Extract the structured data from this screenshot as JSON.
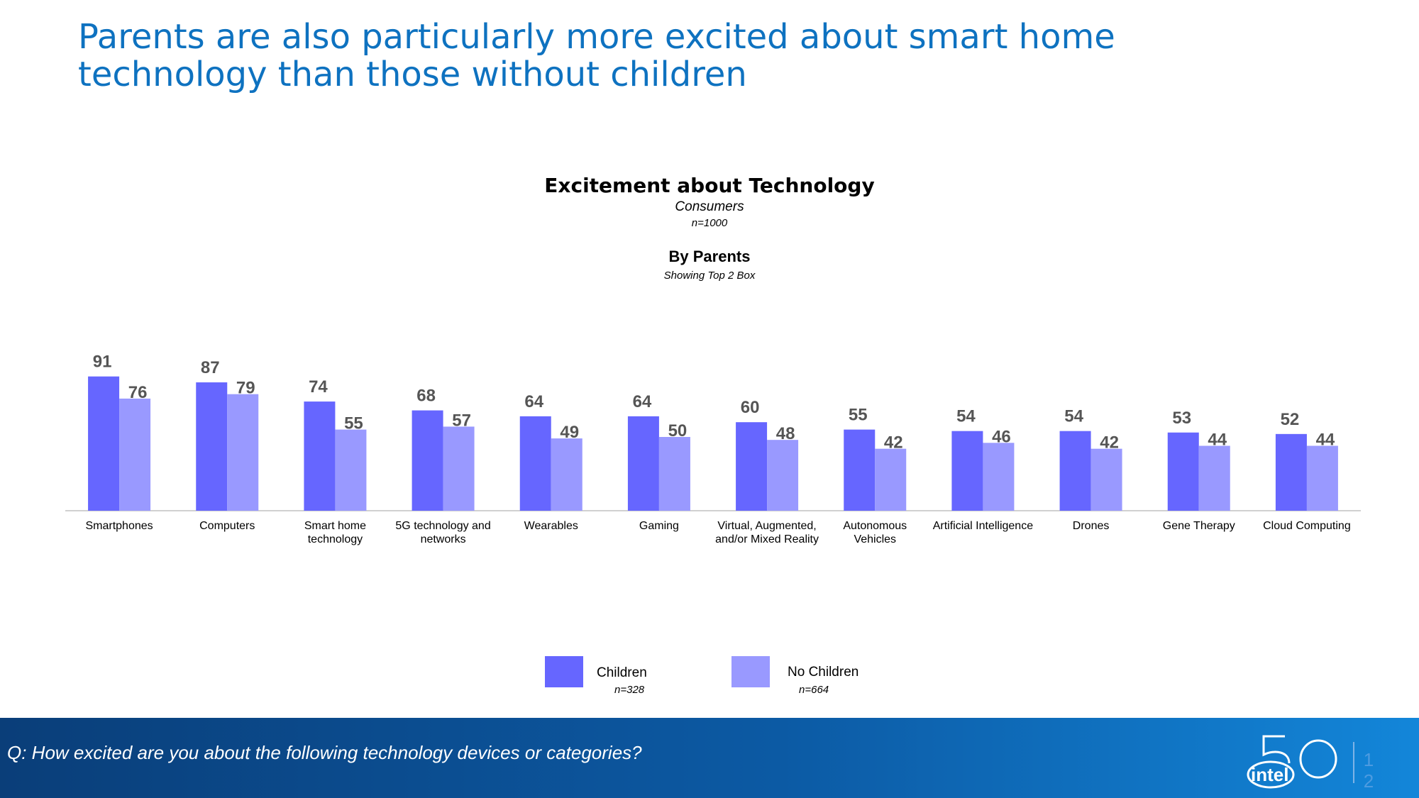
{
  "slide": {
    "title": "Parents are also particularly more excited about smart home technology than those without children",
    "question": "Q: How excited are you about the following technology devices or categories?",
    "page_number": "12",
    "logo_text": "intel"
  },
  "chart_header": {
    "title": "Excitement about Technology",
    "subtitle": "Consumers",
    "sample": "n=1000",
    "breakdown": "By Parents",
    "note": "Showing Top 2 Box"
  },
  "legend": [
    {
      "name": "Children",
      "n": "n=328"
    },
    {
      "name": "No Children",
      "n": "n=664"
    }
  ],
  "colors": {
    "children": "#6666ff",
    "no_children": "#9999ff",
    "title_blue": "#0e72c0",
    "value_label": "#555555"
  },
  "chart_data": {
    "type": "bar",
    "title": "Excitement about Technology",
    "categories": [
      [
        "Smartphones"
      ],
      [
        "Computers"
      ],
      [
        "Smart home",
        "technology"
      ],
      [
        "5G technology and",
        "networks"
      ],
      [
        "Wearables"
      ],
      [
        "Gaming"
      ],
      [
        "Virtual, Augmented,",
        "and/or Mixed Reality"
      ],
      [
        "Autonomous",
        "Vehicles"
      ],
      [
        "Artificial Intelligence"
      ],
      [
        "Drones"
      ],
      [
        "Gene Therapy"
      ],
      [
        "Cloud Computing"
      ]
    ],
    "series": [
      {
        "name": "Children",
        "values": [
          91,
          87,
          74,
          68,
          64,
          64,
          60,
          55,
          54,
          54,
          53,
          52
        ]
      },
      {
        "name": "No Children",
        "values": [
          76,
          79,
          55,
          57,
          49,
          50,
          48,
          42,
          46,
          42,
          44,
          44
        ]
      }
    ],
    "ylim": [
      0,
      100
    ],
    "xlabel": "",
    "ylabel": "",
    "grid": false,
    "legend_position": "bottom"
  }
}
